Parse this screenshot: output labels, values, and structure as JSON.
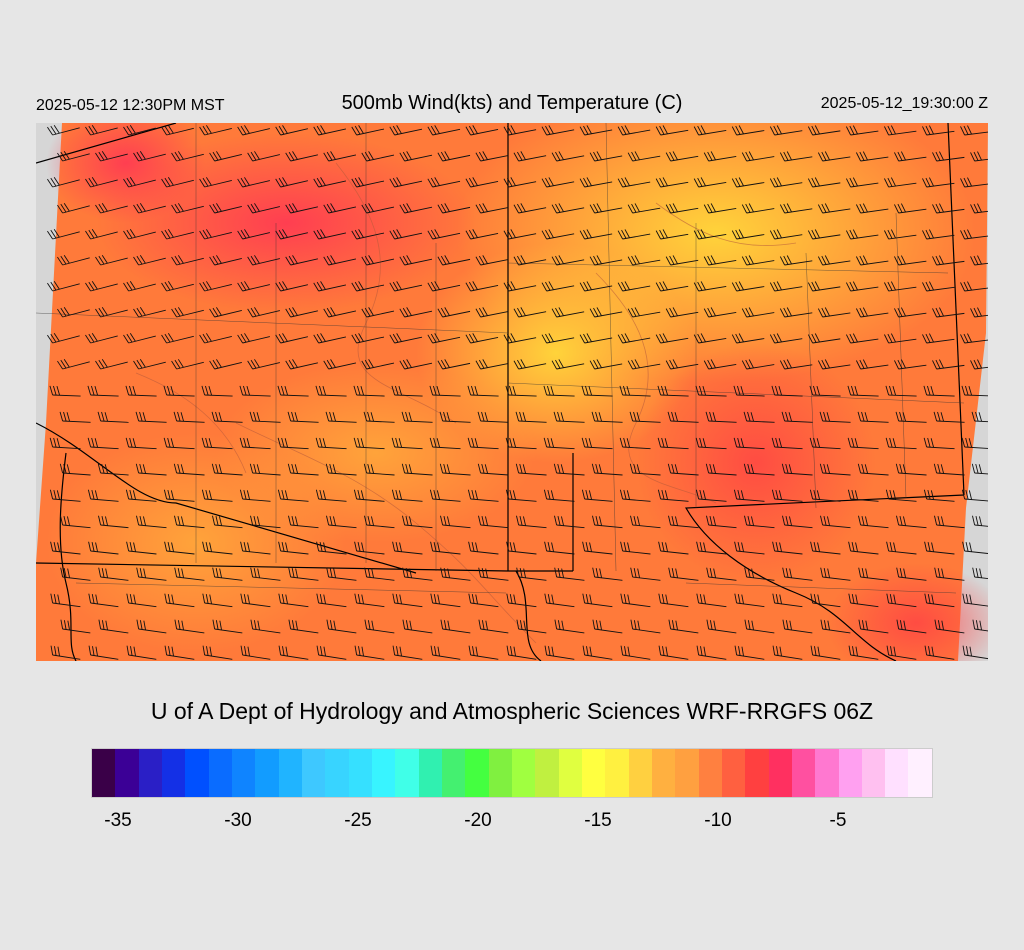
{
  "header": {
    "local_time": "2025-05-12 12:30PM MST",
    "title": "500mb Wind(kts) and Temperature (C)",
    "valid_time": "2025-05-12_19:30:00 Z"
  },
  "credit": "U of A Dept of Hydrology and Atmospheric Sciences WRF-RRGFS 06Z",
  "colorbar": {
    "colors": [
      "#3a0048",
      "#3b0096",
      "#2a1fc6",
      "#1430e6",
      "#0050ff",
      "#0a6cff",
      "#0f84ff",
      "#129cff",
      "#20b4ff",
      "#3ec8ff",
      "#38d4ff",
      "#36e0ff",
      "#38f4ff",
      "#40ffe8",
      "#30f0b0",
      "#44f070",
      "#44ff40",
      "#80f040",
      "#a0ff40",
      "#c0f040",
      "#e0ff40",
      "#ffff40",
      "#fff040",
      "#ffd040",
      "#ffb040",
      "#ffa040",
      "#ff8040",
      "#ff6040",
      "#ff4040",
      "#ff3060",
      "#ff50a0",
      "#ff78d0",
      "#ffa0f0",
      "#ffc0f0",
      "#ffe0ff",
      "#fff0ff"
    ],
    "tick_labels": [
      "-35",
      "-30",
      "-25",
      "-20",
      "-15",
      "-10",
      "-5"
    ]
  }
}
